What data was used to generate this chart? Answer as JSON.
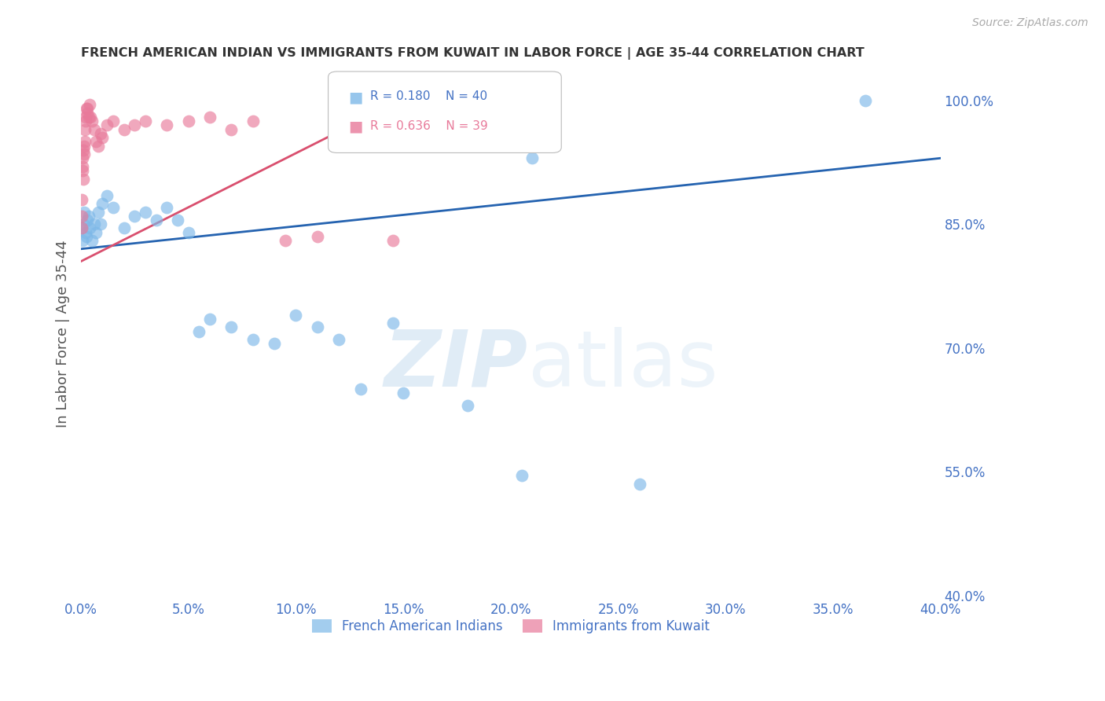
{
  "title": "FRENCH AMERICAN INDIAN VS IMMIGRANTS FROM KUWAIT IN LABOR FORCE | AGE 35-44 CORRELATION CHART",
  "source": "Source: ZipAtlas.com",
  "ylabel": "In Labor Force | Age 35-44",
  "blue_label": "French American Indians",
  "pink_label": "Immigrants from Kuwait",
  "blue_R": 0.18,
  "blue_N": 40,
  "pink_R": 0.636,
  "pink_N": 39,
  "blue_color": "#7db8e8",
  "pink_color": "#e87a9a",
  "blue_line_color": "#2563b0",
  "pink_line_color": "#d94f6e",
  "yticks": [
    40.0,
    55.0,
    70.0,
    85.0,
    100.0
  ],
  "xticks": [
    0.0,
    5.0,
    10.0,
    15.0,
    20.0,
    25.0,
    30.0,
    35.0,
    40.0
  ],
  "xmin": 0.0,
  "xmax": 40.0,
  "ymin": 40.0,
  "ymax": 103.5,
  "blue_line_x0": 0.0,
  "blue_line_y0": 82.0,
  "blue_line_x1": 40.0,
  "blue_line_y1": 93.0,
  "pink_line_x0": 0.0,
  "pink_line_y0": 80.5,
  "pink_line_x1": 14.5,
  "pink_line_y1": 99.5,
  "blue_points_x": [
    0.05,
    0.08,
    0.1,
    0.15,
    0.2,
    0.25,
    0.3,
    0.35,
    0.4,
    0.5,
    0.6,
    0.7,
    0.8,
    0.9,
    1.0,
    1.2,
    1.5,
    2.0,
    2.5,
    3.0,
    3.5,
    4.0,
    4.5,
    5.0,
    5.5,
    6.0,
    7.0,
    8.0,
    9.0,
    10.0,
    11.0,
    12.0,
    13.0,
    14.5,
    15.0,
    18.0,
    20.5,
    21.0,
    26.0,
    36.5
  ],
  "blue_points_y": [
    84.5,
    83.0,
    85.0,
    86.5,
    84.0,
    83.5,
    85.5,
    86.0,
    84.5,
    83.0,
    85.0,
    84.0,
    86.5,
    85.0,
    87.5,
    88.5,
    87.0,
    84.5,
    86.0,
    86.5,
    85.5,
    87.0,
    85.5,
    84.0,
    72.0,
    73.5,
    72.5,
    71.0,
    70.5,
    74.0,
    72.5,
    71.0,
    65.0,
    73.0,
    64.5,
    63.0,
    54.5,
    93.0,
    53.5,
    100.0
  ],
  "pink_points_x": [
    0.02,
    0.04,
    0.05,
    0.06,
    0.07,
    0.08,
    0.1,
    0.12,
    0.13,
    0.15,
    0.17,
    0.18,
    0.2,
    0.22,
    0.25,
    0.28,
    0.3,
    0.35,
    0.4,
    0.45,
    0.5,
    0.6,
    0.7,
    0.8,
    0.9,
    1.0,
    1.2,
    1.5,
    2.0,
    2.5,
    3.0,
    4.0,
    5.0,
    6.0,
    7.0,
    8.0,
    9.5,
    11.0,
    14.5
  ],
  "pink_points_y": [
    84.5,
    86.0,
    88.0,
    91.5,
    93.0,
    92.0,
    94.0,
    90.5,
    93.5,
    94.5,
    96.5,
    95.0,
    97.5,
    98.0,
    99.0,
    98.5,
    99.0,
    98.0,
    99.5,
    98.0,
    97.5,
    96.5,
    95.0,
    94.5,
    96.0,
    95.5,
    97.0,
    97.5,
    96.5,
    97.0,
    97.5,
    97.0,
    97.5,
    98.0,
    96.5,
    97.5,
    83.0,
    83.5,
    83.0
  ],
  "watermark_zip": "ZIP",
  "watermark_atlas": "atlas",
  "background_color": "#ffffff",
  "grid_color": "#c8c8c8",
  "axis_color": "#4472c4",
  "title_color": "#333333"
}
